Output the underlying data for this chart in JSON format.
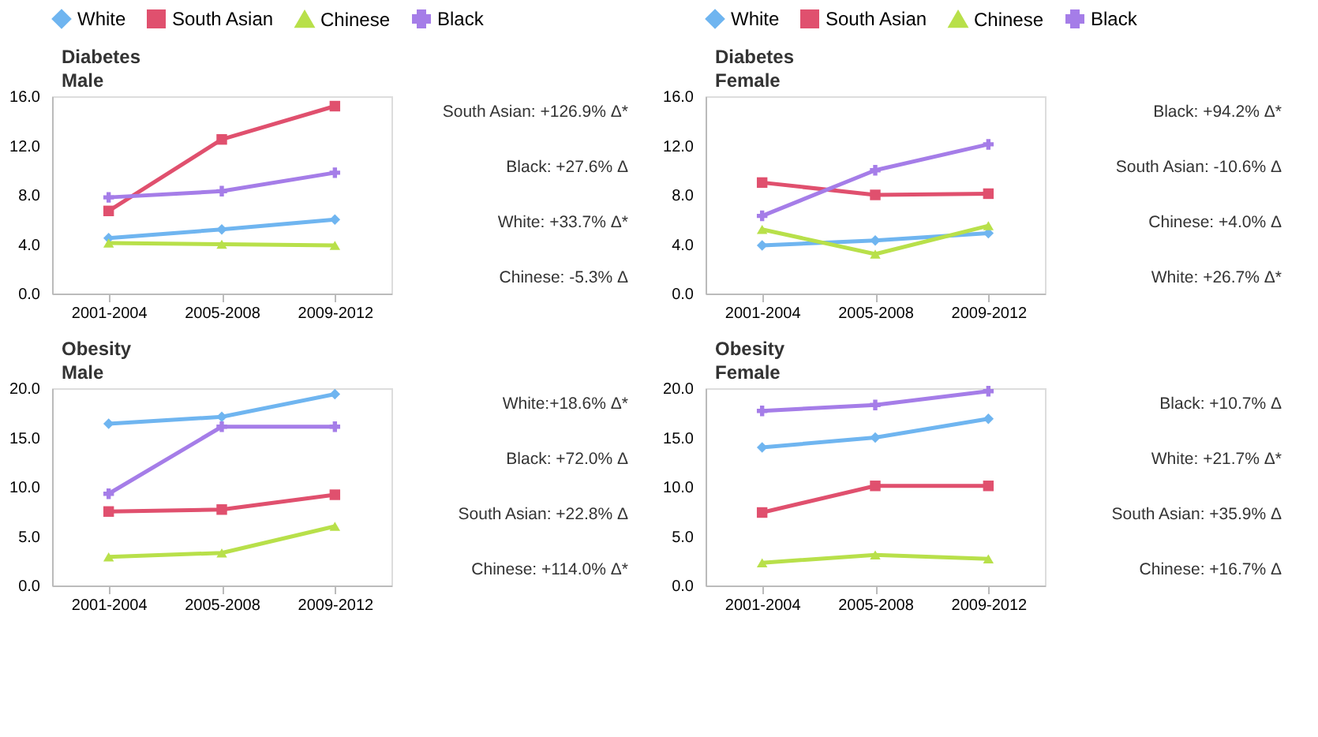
{
  "chart_data": [
    {
      "type": "line",
      "title": "Diabetes",
      "subtitle": "Male",
      "categories": [
        "2001-2004",
        "2005-2008",
        "2009-2012"
      ],
      "ylim": [
        0,
        16
      ],
      "yticks": [
        {
          "value": 0,
          "label": "0.0"
        },
        {
          "value": 4,
          "label": "4.0"
        },
        {
          "value": 8,
          "label": "8.0"
        },
        {
          "value": 12,
          "label": "12.0"
        },
        {
          "value": 16,
          "label": "16.0"
        }
      ],
      "grid": false,
      "legend": "top",
      "series": [
        {
          "name": "White",
          "color": "#6fb5f0",
          "marker": "diamond",
          "values": [
            4.5,
            5.2,
            6.0
          ]
        },
        {
          "name": "South Asian",
          "color": "#e0506e",
          "marker": "square",
          "values": [
            6.7,
            12.5,
            15.2
          ]
        },
        {
          "name": "Chinese",
          "color": "#b8e04a",
          "marker": "triangle",
          "values": [
            4.1,
            4.0,
            3.9
          ]
        },
        {
          "name": "Black",
          "color": "#a57de8",
          "marker": "cross",
          "values": [
            7.8,
            8.3,
            9.8
          ]
        }
      ],
      "annotations": [
        "South Asian: +126.9% Δ*",
        "Black: +27.6% Δ",
        "White: +33.7% Δ*",
        "Chinese: -5.3% Δ"
      ]
    },
    {
      "type": "line",
      "title": "Diabetes",
      "subtitle": "Female",
      "categories": [
        "2001-2004",
        "2005-2008",
        "2009-2012"
      ],
      "ylim": [
        0,
        16
      ],
      "yticks": [
        {
          "value": 0,
          "label": "0.0"
        },
        {
          "value": 4,
          "label": "4.0"
        },
        {
          "value": 8,
          "label": "8.0"
        },
        {
          "value": 12,
          "label": "12.0"
        },
        {
          "value": 16,
          "label": "16.0"
        }
      ],
      "grid": false,
      "legend": "top",
      "series": [
        {
          "name": "White",
          "color": "#6fb5f0",
          "marker": "diamond",
          "values": [
            3.9,
            4.3,
            4.9
          ]
        },
        {
          "name": "South Asian",
          "color": "#e0506e",
          "marker": "square",
          "values": [
            9.0,
            8.0,
            8.1
          ]
        },
        {
          "name": "Chinese",
          "color": "#b8e04a",
          "marker": "triangle",
          "values": [
            5.2,
            3.2,
            5.5
          ]
        },
        {
          "name": "Black",
          "color": "#a57de8",
          "marker": "cross",
          "values": [
            6.3,
            10.0,
            12.1
          ]
        }
      ],
      "annotations": [
        "Black: +94.2% Δ*",
        "South Asian: -10.6% Δ",
        "Chinese: +4.0% Δ",
        "White: +26.7% Δ*"
      ]
    },
    {
      "type": "line",
      "title": "Obesity",
      "subtitle": "Male",
      "categories": [
        "2001-2004",
        "2005-2008",
        "2009-2012"
      ],
      "ylim": [
        0,
        20
      ],
      "yticks": [
        {
          "value": 0,
          "label": "0.0"
        },
        {
          "value": 5,
          "label": "5.0"
        },
        {
          "value": 10,
          "label": "10.0"
        },
        {
          "value": 15,
          "label": "15.0"
        },
        {
          "value": 20,
          "label": "20.0"
        }
      ],
      "grid": false,
      "series": [
        {
          "color": "#6fb5f0",
          "marker": "diamond",
          "values": [
            16.4,
            17.1,
            19.4
          ]
        },
        {
          "color": "#e0506e",
          "marker": "square",
          "values": [
            7.5,
            7.7,
            9.2
          ]
        },
        {
          "color": "#b8e04a",
          "marker": "triangle",
          "values": [
            2.9,
            3.3,
            6.0
          ]
        },
        {
          "color": "#a57de8",
          "marker": "cross",
          "values": [
            9.3,
            16.1,
            16.1
          ]
        }
      ],
      "annotations": [
        "White:+18.6% Δ*",
        "Black: +72.0% Δ",
        "South Asian: +22.8% Δ",
        "Chinese: +114.0% Δ*"
      ]
    },
    {
      "type": "line",
      "title": "Obesity",
      "subtitle": "Female",
      "categories": [
        "2001-2004",
        "2005-2008",
        "2009-2012"
      ],
      "ylim": [
        0,
        20
      ],
      "yticks": [
        {
          "value": 0,
          "label": "0.0"
        },
        {
          "value": 5,
          "label": "5.0"
        },
        {
          "value": 10,
          "label": "10.0"
        },
        {
          "value": 15,
          "label": "15.0"
        },
        {
          "value": 20,
          "label": "20.0"
        }
      ],
      "grid": false,
      "series": [
        {
          "color": "#6fb5f0",
          "marker": "diamond",
          "values": [
            14.0,
            15.0,
            16.9
          ]
        },
        {
          "color": "#e0506e",
          "marker": "square",
          "values": [
            7.4,
            10.1,
            10.1
          ]
        },
        {
          "color": "#b8e04a",
          "marker": "triangle",
          "values": [
            2.3,
            3.1,
            2.7
          ]
        },
        {
          "color": "#a57de8",
          "marker": "cross",
          "values": [
            17.7,
            18.3,
            19.7
          ]
        }
      ],
      "annotations": [
        "Black: +10.7% Δ",
        "White: +21.7% Δ*",
        "South Asian: +35.9% Δ",
        "Chinese: +16.7% Δ"
      ]
    }
  ]
}
